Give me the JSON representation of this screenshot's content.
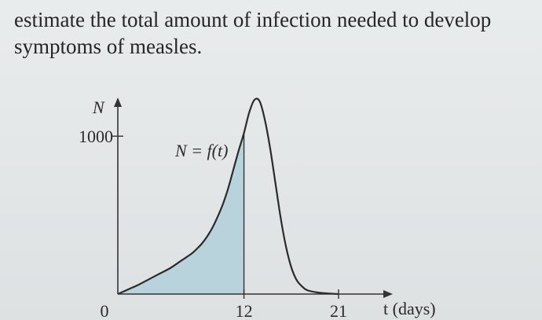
{
  "text": {
    "line1": "estimate the total amount of infection needed to develop",
    "line2": "symptoms of measles."
  },
  "chart_data": {
    "type": "area",
    "ylabel": "N",
    "xlabel": "t (days)",
    "curve_label": "N = f(t)",
    "x_ticks": [
      {
        "value": 0,
        "label": "0"
      },
      {
        "value": 12,
        "label": "12"
      },
      {
        "value": 21,
        "label": "21"
      }
    ],
    "y_ticks": [
      {
        "value": 1000,
        "label": "1000"
      }
    ],
    "xlim": [
      0,
      21
    ],
    "ylim": [
      0,
      1250
    ],
    "grid": false,
    "shaded_region": {
      "x_from": 0,
      "x_to": 12
    },
    "series": [
      {
        "x": [
          0,
          1,
          2,
          3,
          4,
          5,
          6,
          7,
          7.5,
          8,
          8.5,
          9,
          9.5,
          10,
          10.5,
          11,
          11.5,
          12,
          12.5,
          13,
          13.5,
          14,
          14.5,
          15,
          15.5,
          16,
          16.5,
          17,
          17.5,
          18,
          19,
          20,
          21
        ],
        "y": [
          0,
          30,
          60,
          95,
          130,
          165,
          210,
          255,
          285,
          320,
          365,
          420,
          490,
          570,
          670,
          790,
          910,
          1020,
          1150,
          1230,
          1220,
          1100,
          920,
          700,
          480,
          300,
          170,
          90,
          50,
          25,
          10,
          4,
          0
        ]
      }
    ]
  }
}
